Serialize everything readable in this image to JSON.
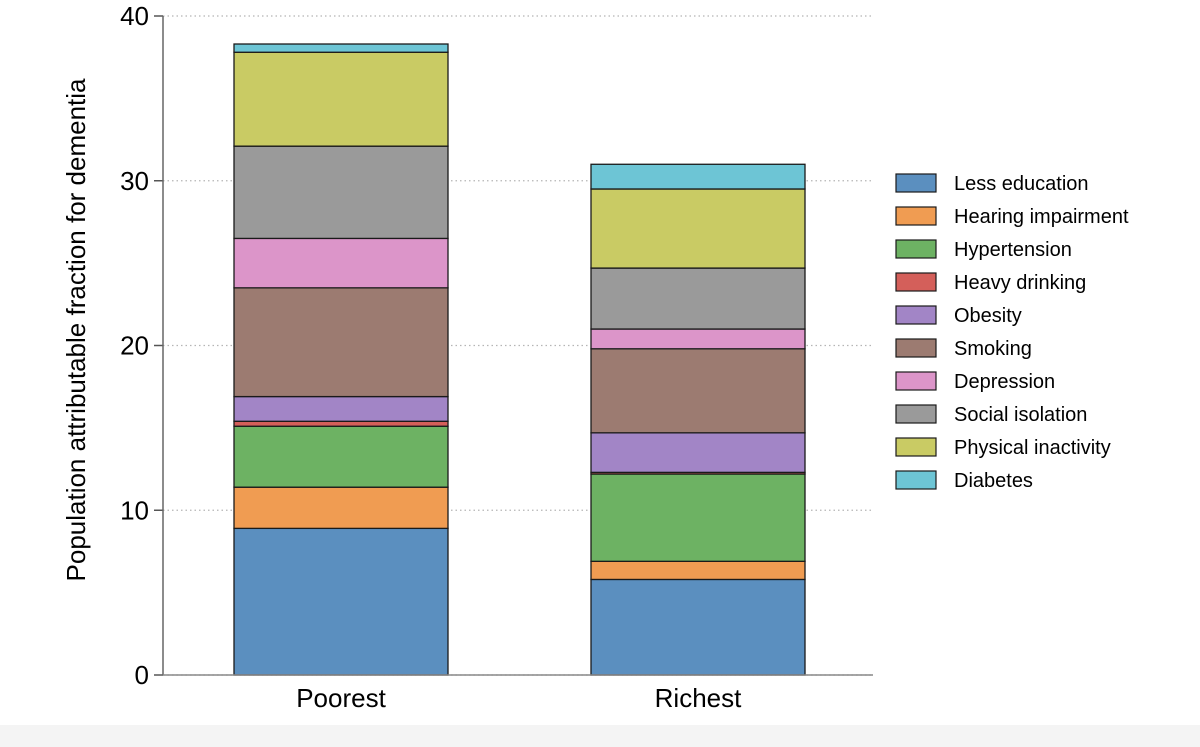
{
  "chart_data": {
    "type": "bar",
    "stacked": true,
    "title": "",
    "xlabel": "",
    "ylabel": "Population attributable fraction for dementia",
    "ylim": [
      0,
      40
    ],
    "yticks": [
      0,
      10,
      20,
      30,
      40
    ],
    "grid": true,
    "legend_position": "right",
    "categories": [
      "Poorest",
      "Richest"
    ],
    "series": [
      {
        "name": "Less education",
        "color": "#5b8fbf",
        "values": [
          8.9,
          5.8
        ]
      },
      {
        "name": "Hearing impairment",
        "color": "#f09c52",
        "values": [
          2.5,
          1.1
        ]
      },
      {
        "name": "Hypertension",
        "color": "#6db263",
        "values": [
          3.7,
          5.3
        ]
      },
      {
        "name": "Heavy drinking",
        "color": "#d45f5a",
        "values": [
          0.3,
          0.1
        ]
      },
      {
        "name": "Obesity",
        "color": "#a285c6",
        "values": [
          1.5,
          2.4
        ]
      },
      {
        "name": "Smoking",
        "color": "#9c7b71",
        "values": [
          6.6,
          5.1
        ]
      },
      {
        "name": "Depression",
        "color": "#dc95c9",
        "values": [
          3.0,
          1.2
        ]
      },
      {
        "name": "Social isolation",
        "color": "#9a9a9a",
        "values": [
          5.6,
          3.7
        ]
      },
      {
        "name": "Physical inactivity",
        "color": "#c9cb64",
        "values": [
          5.7,
          4.8
        ]
      },
      {
        "name": "Diabetes",
        "color": "#6dc5d5",
        "values": [
          0.5,
          1.5
        ]
      }
    ]
  }
}
